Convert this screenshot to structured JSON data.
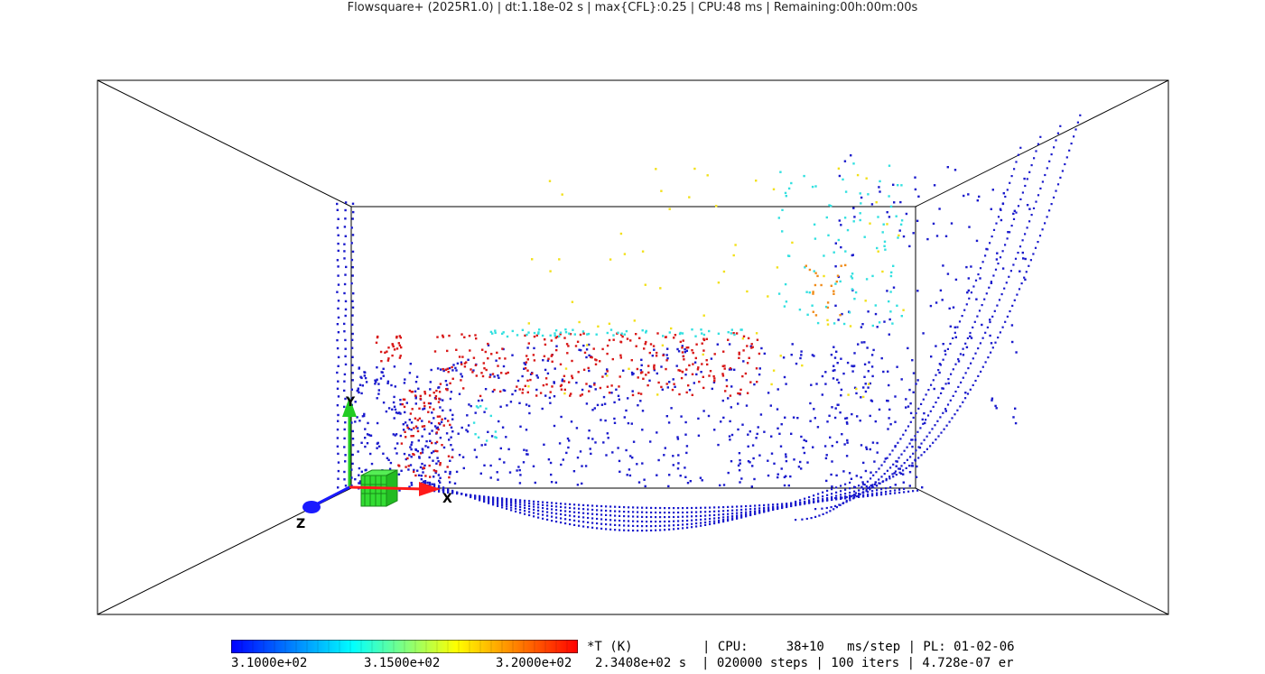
{
  "window": {
    "title": "Flowsquare+ (2025R1.0) | dt:1.18e-02 s | max{CFL}:0.25 | CPU:48 ms | Remaining:00h:00m:00s"
  },
  "viewport": {
    "axes": {
      "x_label": "X",
      "y_label": "Y",
      "z_label": "Z"
    },
    "colors": {
      "x_axis": "#ff1a1a",
      "y_axis": "#22cc22",
      "z_axis": "#1a1aff",
      "inlet_block": "#33dd33"
    }
  },
  "colorbar": {
    "field": "*T (K)",
    "min_label": "3.1000e+02",
    "mid_label": "3.1500e+02",
    "max_label": "3.2000e+02",
    "colormap": [
      "#0000ff",
      "#00ffff",
      "#ffff00",
      "#ff0000"
    ]
  },
  "status": {
    "line1": "| CPU:     38+10   ms/step | PL: 01-02-06",
    "line2": "2.3408e+02 s  | 020000 steps | 100 iters | 4.728e-07 er"
  }
}
